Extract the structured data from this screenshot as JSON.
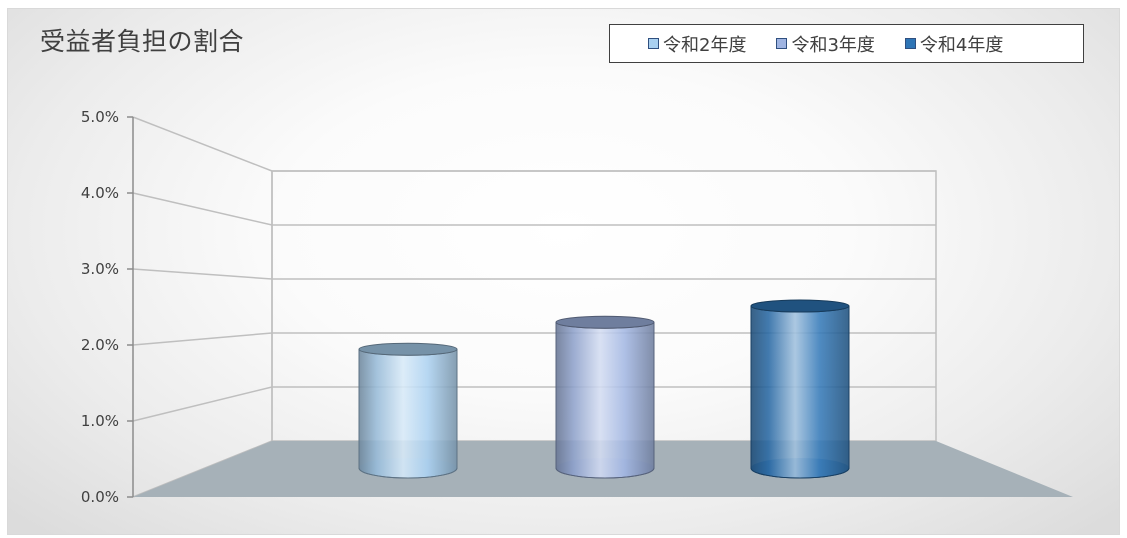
{
  "chart_data": {
    "type": "bar",
    "title": "受益者負担の割合",
    "categories": [
      ""
    ],
    "series": [
      {
        "name": "令和2年度",
        "values": [
          2.2
        ]
      },
      {
        "name": "令和3年度",
        "values": [
          2.7
        ]
      },
      {
        "name": "令和4年度",
        "values": [
          3.0
        ]
      }
    ],
    "xlabel": "",
    "ylabel": "",
    "ylim": [
      0,
      5
    ],
    "y_ticks": [
      "0.0%",
      "1.0%",
      "2.0%",
      "3.0%",
      "4.0%",
      "5.0%"
    ],
    "value_format": "percent",
    "grid": true,
    "legend_position": "top-right",
    "style": "3d-cylinder"
  },
  "colors": {
    "series": [
      "#a9d0f0",
      "#9fb4e2",
      "#2e75b6"
    ],
    "floor": "#a6b1b8",
    "grid": "#bfbfbf",
    "text": "#404040"
  }
}
